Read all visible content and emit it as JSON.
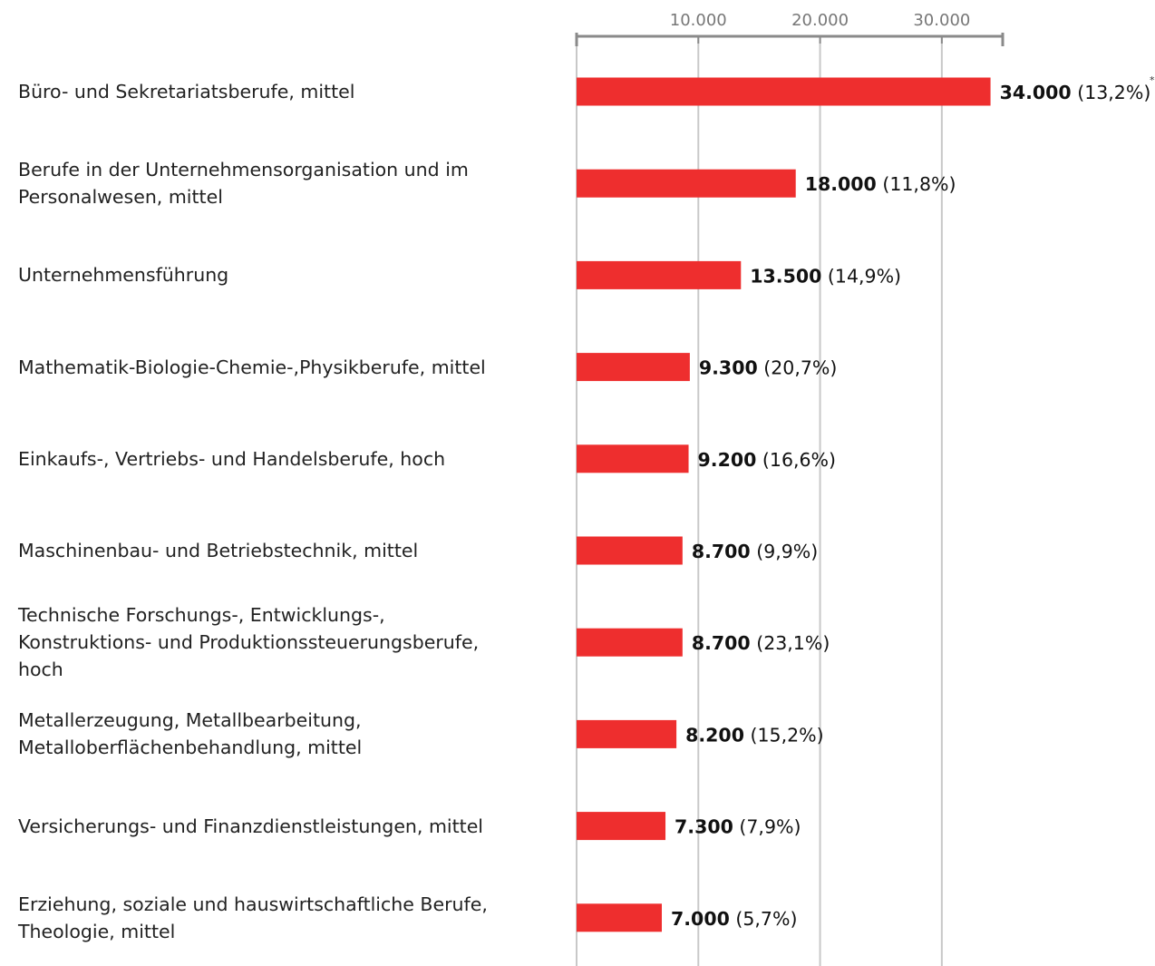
{
  "chart_data": {
    "type": "barh",
    "categories": [
      "Büro- und Sekretariatsberufe, mittel",
      "Berufe in der Unternehmensorganisation und im\nPersonalwesen, mittel",
      "Unternehmensführung",
      "Mathematik-Biologie-Chemie-,Physikberufe, mittel",
      "Einkaufs-, Vertriebs- und Handelsberufe, hoch",
      "Maschinenbau- und Betriebstechnik, mittel",
      "Technische Forschungs-, Entwicklungs-,\nKonstruktions- und Produktionssteuerungsberufe,\nhoch",
      "Metallerzeugung, Metallbearbeitung,\nMetalloberflächenbehandlung, mittel",
      "Versicherungs- und Finanzdienstleistungen, mittel",
      "Erziehung, soziale und hauswirtschaftliche Berufe,\nTheologie, mittel"
    ],
    "values": [
      34000,
      18000,
      13500,
      9300,
      9200,
      8700,
      8700,
      8200,
      7300,
      7000
    ],
    "value_labels": [
      "34.000",
      "18.000",
      "13.500",
      "9.300",
      "9.200",
      "8.700",
      "8.700",
      "8.200",
      "7.300",
      "7.000"
    ],
    "share_labels": [
      "(13,2%)",
      "(11,8%)",
      "(14,9%)",
      "(20,7%)",
      "(16,6%)",
      "(9,9%)",
      "(23,1%)",
      "(15,2%)",
      "(7,9%)",
      "(5,7%)"
    ],
    "footnote_mark": "*",
    "color": "#ee2e2e",
    "xlim": [
      0,
      35000
    ],
    "xticks": [
      {
        "value": 10000,
        "label": "10.000"
      },
      {
        "value": 20000,
        "label": "20.000"
      },
      {
        "value": 30000,
        "label": "30.000"
      }
    ],
    "grid": true
  }
}
